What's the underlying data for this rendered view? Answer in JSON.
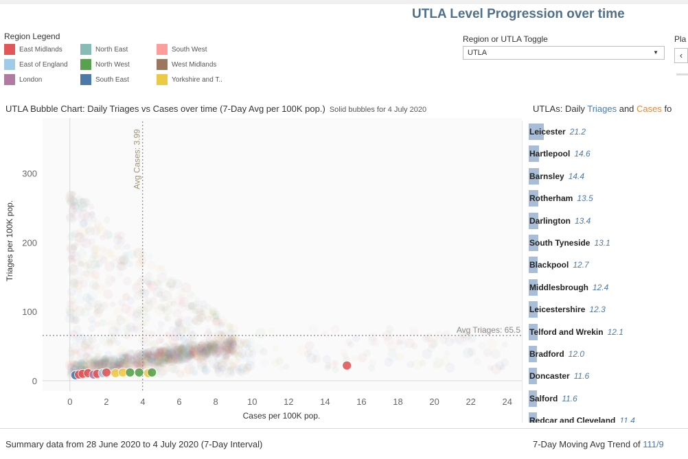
{
  "title": "UTLA Level Progression over time",
  "legend": {
    "title": "Region Legend",
    "items": [
      {
        "label": "East Midlands",
        "color": "#e15759"
      },
      {
        "label": "East of England",
        "color": "#a0cbe8"
      },
      {
        "label": "London",
        "color": "#b07aa1"
      },
      {
        "label": "North East",
        "color": "#86bcb6"
      },
      {
        "label": "North West",
        "color": "#59a14f"
      },
      {
        "label": "South East",
        "color": "#4e79a7"
      },
      {
        "label": "South West",
        "color": "#ff9d9a"
      },
      {
        "label": "West Midlands",
        "color": "#9d7660"
      },
      {
        "label": "Yorkshire and T..",
        "color": "#edc948"
      }
    ]
  },
  "toggle": {
    "label": "Region or UTLA Toggle",
    "value": "UTLA"
  },
  "play": {
    "label": "Pla",
    "back_glyph": "‹"
  },
  "bubble_chart": {
    "title": "UTLA Bubble Chart: Daily Triages vs Cases over time (7-Day Avg per 100K pop.)",
    "subtitle": "Solid bubbles for 4 July 2020",
    "avg_cases_label": "Avg Cases: 3.99",
    "avg_triages_label": "Avg Triages: 65.5"
  },
  "chart_data": {
    "type": "scatter",
    "title": "UTLA Bubble Chart: Daily Triages vs Cases over time (7-Day Avg per 100K pop.)",
    "xlabel": "Cases per 100K pop.",
    "ylabel": "Triages per 100K pop.",
    "xlim": [
      -1.5,
      24.8
    ],
    "ylim": [
      -15,
      380
    ],
    "xticks": [
      0,
      2,
      4,
      6,
      8,
      10,
      12,
      14,
      16,
      18,
      20,
      22,
      24
    ],
    "yticks": [
      0,
      100,
      200,
      300
    ],
    "grid": false,
    "ref_lines": {
      "avg_cases": 3.99,
      "avg_triages": 65.5
    },
    "solid_points": [
      {
        "x": 0.3,
        "y": 8,
        "region": "South East"
      },
      {
        "x": 0.5,
        "y": 9,
        "region": "East Midlands"
      },
      {
        "x": 0.7,
        "y": 10,
        "region": "East Midlands"
      },
      {
        "x": 1.0,
        "y": 11,
        "region": "East Midlands"
      },
      {
        "x": 1.3,
        "y": 9,
        "region": "London"
      },
      {
        "x": 1.5,
        "y": 10,
        "region": "East Midlands"
      },
      {
        "x": 1.8,
        "y": 11,
        "region": "East of England"
      },
      {
        "x": 2.0,
        "y": 12,
        "region": "East Midlands"
      },
      {
        "x": 2.5,
        "y": 11,
        "region": "Yorkshire and The Humber"
      },
      {
        "x": 2.9,
        "y": 12,
        "region": "Yorkshire and The Humber"
      },
      {
        "x": 3.3,
        "y": 12,
        "region": "North West"
      },
      {
        "x": 3.8,
        "y": 12,
        "region": "North West"
      },
      {
        "x": 4.3,
        "y": 11,
        "region": "Yorkshire and The Humber"
      },
      {
        "x": 4.5,
        "y": 12,
        "region": "North West"
      },
      {
        "x": 15.2,
        "y": 22,
        "region": "East Midlands"
      }
    ]
  },
  "bar_panel": {
    "title_prefix": "UTLAs: Daily ",
    "triages_word": "Triages",
    "and_word": " and ",
    "cases_word": "Cases",
    "title_suffix": " fo",
    "items": [
      {
        "name": "Leicester",
        "value": "21.2",
        "cases": 21.2
      },
      {
        "name": "Hartlepool",
        "value": "14.6",
        "cases": 14.6
      },
      {
        "name": "Barnsley",
        "value": "14.4",
        "cases": 14.4
      },
      {
        "name": "Rotherham",
        "value": "13.5",
        "cases": 13.5
      },
      {
        "name": "Darlington",
        "value": "13.4",
        "cases": 13.4
      },
      {
        "name": "South Tyneside",
        "value": "13.1",
        "cases": 13.1
      },
      {
        "name": "Blackpool",
        "value": "12.7",
        "cases": 12.7
      },
      {
        "name": "Middlesbrough",
        "value": "12.4",
        "cases": 12.4
      },
      {
        "name": "Leicestershire",
        "value": "12.3",
        "cases": 12.3
      },
      {
        "name": "Telford and Wrekin",
        "value": "12.1",
        "cases": 12.1
      },
      {
        "name": "Bradford",
        "value": "12.0",
        "cases": 12.0
      },
      {
        "name": "Doncaster",
        "value": "11.6",
        "cases": 11.6
      },
      {
        "name": "Salford",
        "value": "11.6",
        "cases": 11.6
      },
      {
        "name": "Redcar and Cleveland",
        "value": "11.4",
        "cases": 11.4
      }
    ]
  },
  "footer": {
    "summary": "Summary data from 28 June 2020 to 4 July 2020 (7-Day Interval)",
    "trend_prefix": "7-Day Moving Avg Trend of ",
    "trend_value": "111/9"
  }
}
